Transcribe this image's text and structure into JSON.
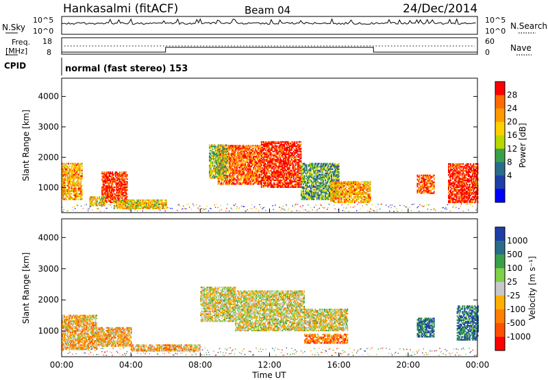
{
  "header": {
    "station": "Hankasalmi (fitACF)",
    "beam": "Beam 04",
    "date": "24/Dec/2014"
  },
  "aux_panels": {
    "nsky_label": "N.Sky",
    "nsky_top_tick": "10^5",
    "nsky_bottom_tick": "10^0",
    "nsearch_label": "N.Search",
    "nsearch_top_tick": "10^5",
    "nsearch_bottom_tick": "10^0",
    "freq_label_1": "Freq.",
    "freq_label_2": "[MHz]",
    "freq_top_tick": "18",
    "freq_bottom_tick": "8",
    "nave_label": "Nave",
    "nave_top_tick": "60",
    "nave_bottom_tick": "0",
    "cpid_label": "CPID",
    "cpid_text": "normal (fast stereo) 153"
  },
  "chart_data": [
    {
      "type": "heatmap",
      "panel": "power",
      "ylabel": "Slant Range [km]",
      "xlabel": "",
      "ylim": [
        180,
        4600
      ],
      "yticks": [
        1000,
        2000,
        3000,
        4000
      ],
      "colorbar": {
        "label": "Power [dB]",
        "ticks": [
          "28",
          "24",
          "20",
          "16",
          "12",
          "8",
          "4"
        ],
        "colors": [
          "#ff0000",
          "#ff6b00",
          "#ff9a00",
          "#ffd000",
          "#b8d800",
          "#3aa04a",
          "#2a6d8a",
          "#1f3fa8",
          "#0000ff"
        ]
      },
      "regions": [
        {
          "t0": 0.0,
          "t1": 1.2,
          "r0": 600,
          "r1": 1800,
          "level": 2
        },
        {
          "t0": 2.3,
          "t1": 3.8,
          "r0": 500,
          "r1": 1500,
          "level": 0
        },
        {
          "t0": 1.6,
          "t1": 2.5,
          "r0": 400,
          "r1": 700,
          "level": 3
        },
        {
          "t0": 3.0,
          "t1": 6.0,
          "r0": 300,
          "r1": 600,
          "level": 3
        },
        {
          "t0": 9.0,
          "t1": 11.5,
          "r0": 1100,
          "r1": 2400,
          "level": 1
        },
        {
          "t0": 11.5,
          "t1": 13.8,
          "r0": 1000,
          "r1": 2500,
          "level": 0
        },
        {
          "t0": 8.5,
          "t1": 9.5,
          "r0": 1300,
          "r1": 2400,
          "level": 4
        },
        {
          "t0": 13.8,
          "t1": 16.0,
          "r0": 600,
          "r1": 1800,
          "level": 5
        },
        {
          "t0": 15.5,
          "t1": 17.8,
          "r0": 500,
          "r1": 1200,
          "level": 2
        },
        {
          "t0": 20.5,
          "t1": 21.5,
          "r0": 800,
          "r1": 1400,
          "level": 1
        },
        {
          "t0": 22.3,
          "t1": 24.0,
          "r0": 500,
          "r1": 1800,
          "level": 0
        }
      ]
    },
    {
      "type": "heatmap",
      "panel": "velocity",
      "ylabel": "Slant Range [km]",
      "xlabel": "Time UT",
      "ylim": [
        180,
        4600
      ],
      "yticks": [
        1000,
        2000,
        3000,
        4000
      ],
      "xticks": [
        "00:00",
        "04:00",
        "08:00",
        "12:00",
        "16:00",
        "20:00",
        "00:00"
      ],
      "colorbar": {
        "label": "Velocity [m s⁻¹]",
        "ticks": [
          "1000",
          "500",
          "100",
          "25",
          "-25",
          "-100",
          "-500",
          "-1000"
        ],
        "colors": [
          "#1f3fa8",
          "#2a6d8a",
          "#3aa04a",
          "#7fd04a",
          "#c8c8c8",
          "#ffb000",
          "#ff8000",
          "#ff5000",
          "#ff0000"
        ]
      },
      "regions": [
        {
          "t0": 0.0,
          "t1": 2.0,
          "r0": 400,
          "r1": 1500,
          "level": 5
        },
        {
          "t0": 2.0,
          "t1": 4.0,
          "r0": 500,
          "r1": 1100,
          "level": 5
        },
        {
          "t0": 4.0,
          "t1": 8.0,
          "r0": 350,
          "r1": 550,
          "level": 5
        },
        {
          "t0": 8.0,
          "t1": 10.0,
          "r0": 1300,
          "r1": 2400,
          "level": 4
        },
        {
          "t0": 10.0,
          "t1": 14.0,
          "r0": 1000,
          "r1": 2300,
          "level": 4
        },
        {
          "t0": 14.0,
          "t1": 16.5,
          "r0": 600,
          "r1": 900,
          "level": 6
        },
        {
          "t0": 14.0,
          "t1": 16.5,
          "r0": 1000,
          "r1": 1700,
          "level": 4
        },
        {
          "t0": 20.5,
          "t1": 21.5,
          "r0": 800,
          "r1": 1400,
          "level": 1
        },
        {
          "t0": 22.8,
          "t1": 24.0,
          "r0": 700,
          "r1": 1800,
          "level": 1
        }
      ]
    }
  ]
}
